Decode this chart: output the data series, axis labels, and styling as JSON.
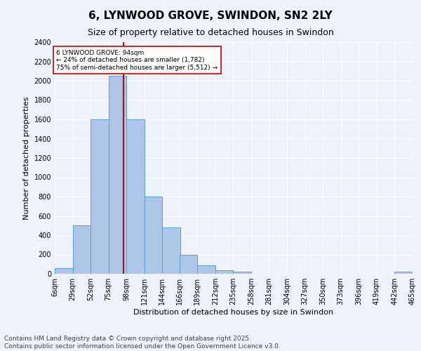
{
  "title": "6, LYNWOOD GROVE, SWINDON, SN2 2LY",
  "subtitle": "Size of property relative to detached houses in Swindon",
  "xlabel": "Distribution of detached houses by size in Swindon",
  "ylabel": "Number of detached properties",
  "bin_labels": [
    "6sqm",
    "29sqm",
    "52sqm",
    "75sqm",
    "98sqm",
    "121sqm",
    "144sqm",
    "166sqm",
    "189sqm",
    "212sqm",
    "235sqm",
    "258sqm",
    "281sqm",
    "304sqm",
    "327sqm",
    "350sqm",
    "373sqm",
    "396sqm",
    "419sqm",
    "442sqm",
    "465sqm"
  ],
  "bin_edges": [
    6,
    29,
    52,
    75,
    98,
    121,
    144,
    166,
    189,
    212,
    235,
    258,
    281,
    304,
    327,
    350,
    373,
    396,
    419,
    442,
    465
  ],
  "bar_heights": [
    55,
    500,
    1600,
    2050,
    1600,
    800,
    480,
    200,
    90,
    35,
    20,
    0,
    0,
    0,
    0,
    0,
    0,
    0,
    0,
    25,
    0
  ],
  "bar_color": "#aec6e8",
  "bar_edge_color": "#5a9fd4",
  "vline_x": 94,
  "vline_color": "#cc0000",
  "annotation_text": "6 LYNWOOD GROVE: 94sqm\n← 24% of detached houses are smaller (1,782)\n75% of semi-detached houses are larger (5,512) →",
  "annotation_box_color": "#ffffff",
  "annotation_box_edge_color": "#cc0000",
  "ylim": [
    0,
    2400
  ],
  "yticks": [
    0,
    200,
    400,
    600,
    800,
    1000,
    1200,
    1400,
    1600,
    1800,
    2000,
    2200,
    2400
  ],
  "background_color": "#eef2fb",
  "grid_color": "#ffffff",
  "footer_text": "Contains HM Land Registry data © Crown copyright and database right 2025.\nContains public sector information licensed under the Open Government Licence v3.0.",
  "title_fontsize": 11,
  "subtitle_fontsize": 9,
  "label_fontsize": 8,
  "tick_fontsize": 7,
  "footer_fontsize": 6.5
}
